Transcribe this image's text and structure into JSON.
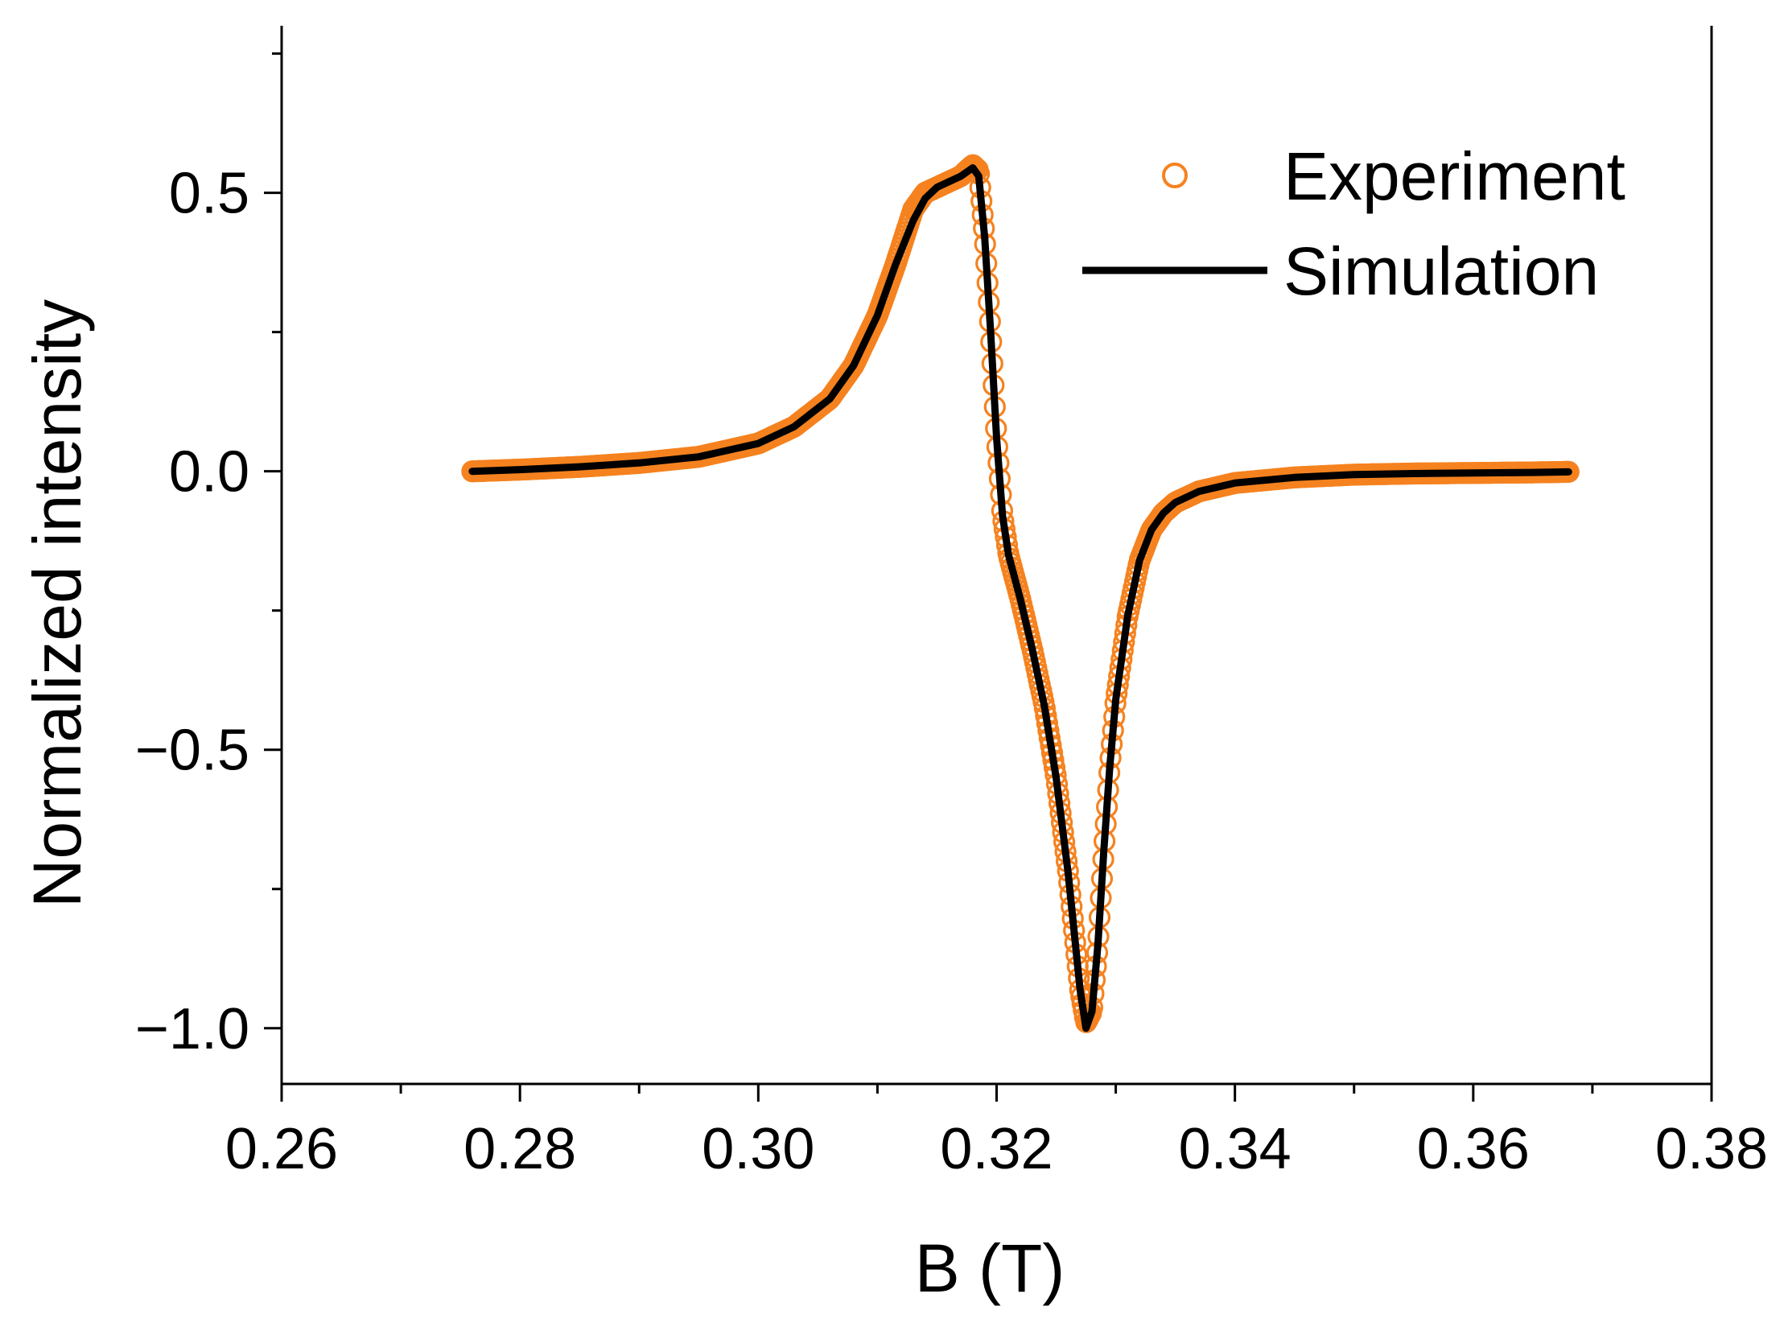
{
  "chart_data": {
    "type": "scatter",
    "title": "",
    "xlabel": "B (T)",
    "ylabel": "Normalized intensity",
    "xlim": [
      0.26,
      0.38
    ],
    "ylim": [
      -1.1,
      0.8
    ],
    "x_ticks": [
      0.26,
      0.28,
      0.3,
      0.32,
      0.34,
      0.36,
      0.38
    ],
    "x_tick_labels": [
      "0.26",
      "0.28",
      "0.30",
      "0.32",
      "0.34",
      "0.36",
      "0.38"
    ],
    "y_ticks": [
      -1.0,
      -0.5,
      0.0,
      0.5
    ],
    "y_tick_labels": [
      "−1.0",
      "−0.5",
      "0.0",
      "0.5"
    ],
    "x_minor_step": 0.01,
    "y_minor_step": 0.25,
    "grid": false,
    "legend_position": "top-right",
    "series": [
      {
        "name": "Experiment",
        "style": "open-circles",
        "color": "#F5821F",
        "x": [
          0.276,
          0.28,
          0.285,
          0.29,
          0.295,
          0.3,
          0.303,
          0.306,
          0.308,
          0.31,
          0.3115,
          0.313,
          0.314,
          0.315,
          0.316,
          0.317,
          0.318,
          0.3185,
          0.319,
          0.3195,
          0.32,
          0.3205,
          0.321,
          0.3215,
          0.322,
          0.323,
          0.324,
          0.325,
          0.326,
          0.327,
          0.3275,
          0.328,
          0.3285,
          0.329,
          0.3295,
          0.33,
          0.331,
          0.332,
          0.333,
          0.334,
          0.335,
          0.337,
          0.34,
          0.345,
          0.35,
          0.355,
          0.36,
          0.365,
          0.368
        ],
        "y": [
          0.0,
          0.003,
          0.008,
          0.015,
          0.026,
          0.05,
          0.08,
          0.13,
          0.19,
          0.28,
          0.37,
          0.47,
          0.5,
          0.51,
          0.52,
          0.53,
          0.55,
          0.54,
          0.42,
          0.25,
          0.06,
          -0.08,
          -0.15,
          -0.19,
          -0.23,
          -0.32,
          -0.42,
          -0.55,
          -0.72,
          -0.93,
          -0.99,
          -0.97,
          -0.85,
          -0.68,
          -0.53,
          -0.41,
          -0.26,
          -0.16,
          -0.105,
          -0.075,
          -0.056,
          -0.036,
          -0.021,
          -0.011,
          -0.006,
          -0.004,
          -0.003,
          -0.002,
          -0.001
        ]
      },
      {
        "name": "Simulation",
        "style": "line",
        "color": "#000000",
        "x": [
          0.276,
          0.28,
          0.285,
          0.29,
          0.295,
          0.3,
          0.303,
          0.306,
          0.308,
          0.31,
          0.3115,
          0.313,
          0.314,
          0.315,
          0.316,
          0.317,
          0.318,
          0.3185,
          0.319,
          0.3195,
          0.32,
          0.3205,
          0.321,
          0.3215,
          0.322,
          0.323,
          0.324,
          0.325,
          0.326,
          0.327,
          0.3275,
          0.328,
          0.3285,
          0.329,
          0.3295,
          0.33,
          0.331,
          0.332,
          0.333,
          0.334,
          0.335,
          0.337,
          0.34,
          0.345,
          0.35,
          0.355,
          0.36,
          0.365,
          0.368
        ],
        "y": [
          0.0,
          0.003,
          0.008,
          0.015,
          0.026,
          0.05,
          0.08,
          0.13,
          0.19,
          0.28,
          0.37,
          0.45,
          0.49,
          0.51,
          0.52,
          0.53,
          0.545,
          0.53,
          0.42,
          0.25,
          0.06,
          -0.08,
          -0.15,
          -0.19,
          -0.23,
          -0.32,
          -0.42,
          -0.55,
          -0.72,
          -0.93,
          -1.0,
          -0.97,
          -0.85,
          -0.68,
          -0.53,
          -0.41,
          -0.26,
          -0.16,
          -0.105,
          -0.075,
          -0.056,
          -0.036,
          -0.021,
          -0.011,
          -0.006,
          -0.004,
          -0.003,
          -0.002,
          -0.001
        ]
      }
    ]
  }
}
